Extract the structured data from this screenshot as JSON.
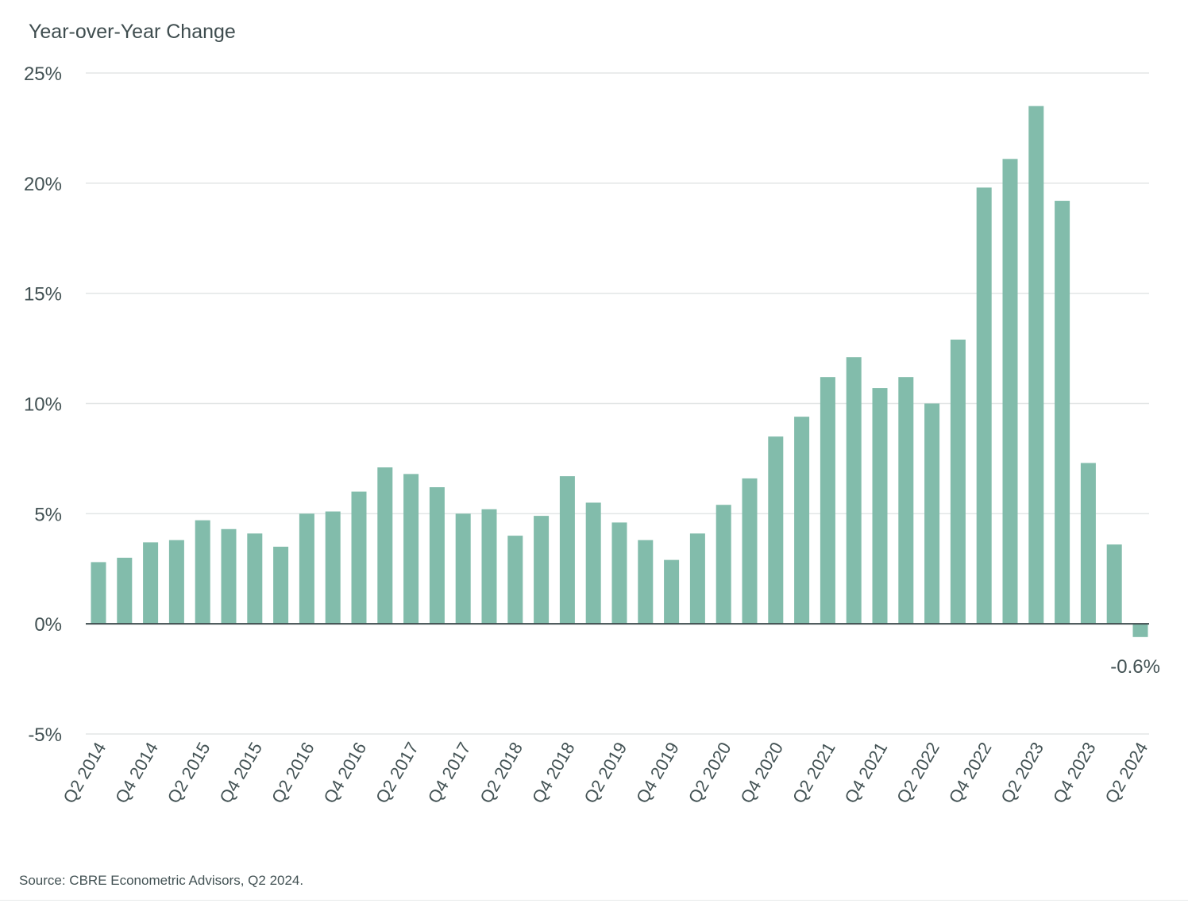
{
  "chart_data": {
    "type": "bar",
    "title": "Year-over-Year Change",
    "source": "Source: CBRE Econometric Advisors, Q2 2024.",
    "bar_color": "#82bcab",
    "zero_line_color": "#3f4d4f",
    "grid_color": "#e3e6e6",
    "grid": true,
    "legend": "none",
    "ylim": [
      -5,
      25
    ],
    "y_ticks": [
      25,
      20,
      15,
      10,
      5,
      0,
      -5
    ],
    "y_tick_labels": [
      "25%",
      "20%",
      "15%",
      "10%",
      "5%",
      "0%",
      "-5%"
    ],
    "categories": [
      "Q2 2014",
      "Q3 2014",
      "Q4 2014",
      "Q1 2015",
      "Q2 2015",
      "Q3 2015",
      "Q4 2015",
      "Q1 2016",
      "Q2 2016",
      "Q3 2016",
      "Q4 2016",
      "Q1 2017",
      "Q2 2017",
      "Q3 2017",
      "Q4 2017",
      "Q1 2018",
      "Q2 2018",
      "Q3 2018",
      "Q4 2018",
      "Q1 2019",
      "Q2 2019",
      "Q3 2019",
      "Q4 2019",
      "Q1 2020",
      "Q2 2020",
      "Q3 2020",
      "Q4 2020",
      "Q1 2021",
      "Q2 2021",
      "Q3 2021",
      "Q4 2021",
      "Q1 2022",
      "Q2 2022",
      "Q3 2022",
      "Q4 2022",
      "Q1 2023",
      "Q2 2023",
      "Q3 2023",
      "Q4 2023",
      "Q1 2024",
      "Q2 2024"
    ],
    "x_tick_labels": [
      "Q2 2014",
      "Q4 2014",
      "Q2 2015",
      "Q4 2015",
      "Q2 2016",
      "Q4 2016",
      "Q2 2017",
      "Q4 2017",
      "Q2 2018",
      "Q4 2018",
      "Q2 2019",
      "Q4 2019",
      "Q2 2020",
      "Q4 2020",
      "Q2 2021",
      "Q4 2021",
      "Q2 2022",
      "Q4 2022",
      "Q2 2023",
      "Q4 2023",
      "Q2 2024"
    ],
    "values": [
      2.8,
      3.0,
      3.7,
      3.8,
      4.7,
      4.3,
      4.1,
      3.5,
      5.0,
      5.1,
      6.0,
      7.1,
      6.8,
      6.2,
      5.0,
      5.2,
      4.0,
      4.9,
      6.7,
      5.5,
      4.6,
      3.8,
      2.9,
      4.1,
      5.4,
      6.6,
      8.5,
      9.4,
      11.2,
      12.1,
      10.7,
      11.2,
      10.0,
      12.9,
      19.8,
      21.1,
      23.5,
      19.2,
      7.3,
      3.6,
      -0.6
    ],
    "annotations": [
      {
        "text": "-0.6%",
        "category": "Q2 2024"
      }
    ]
  }
}
